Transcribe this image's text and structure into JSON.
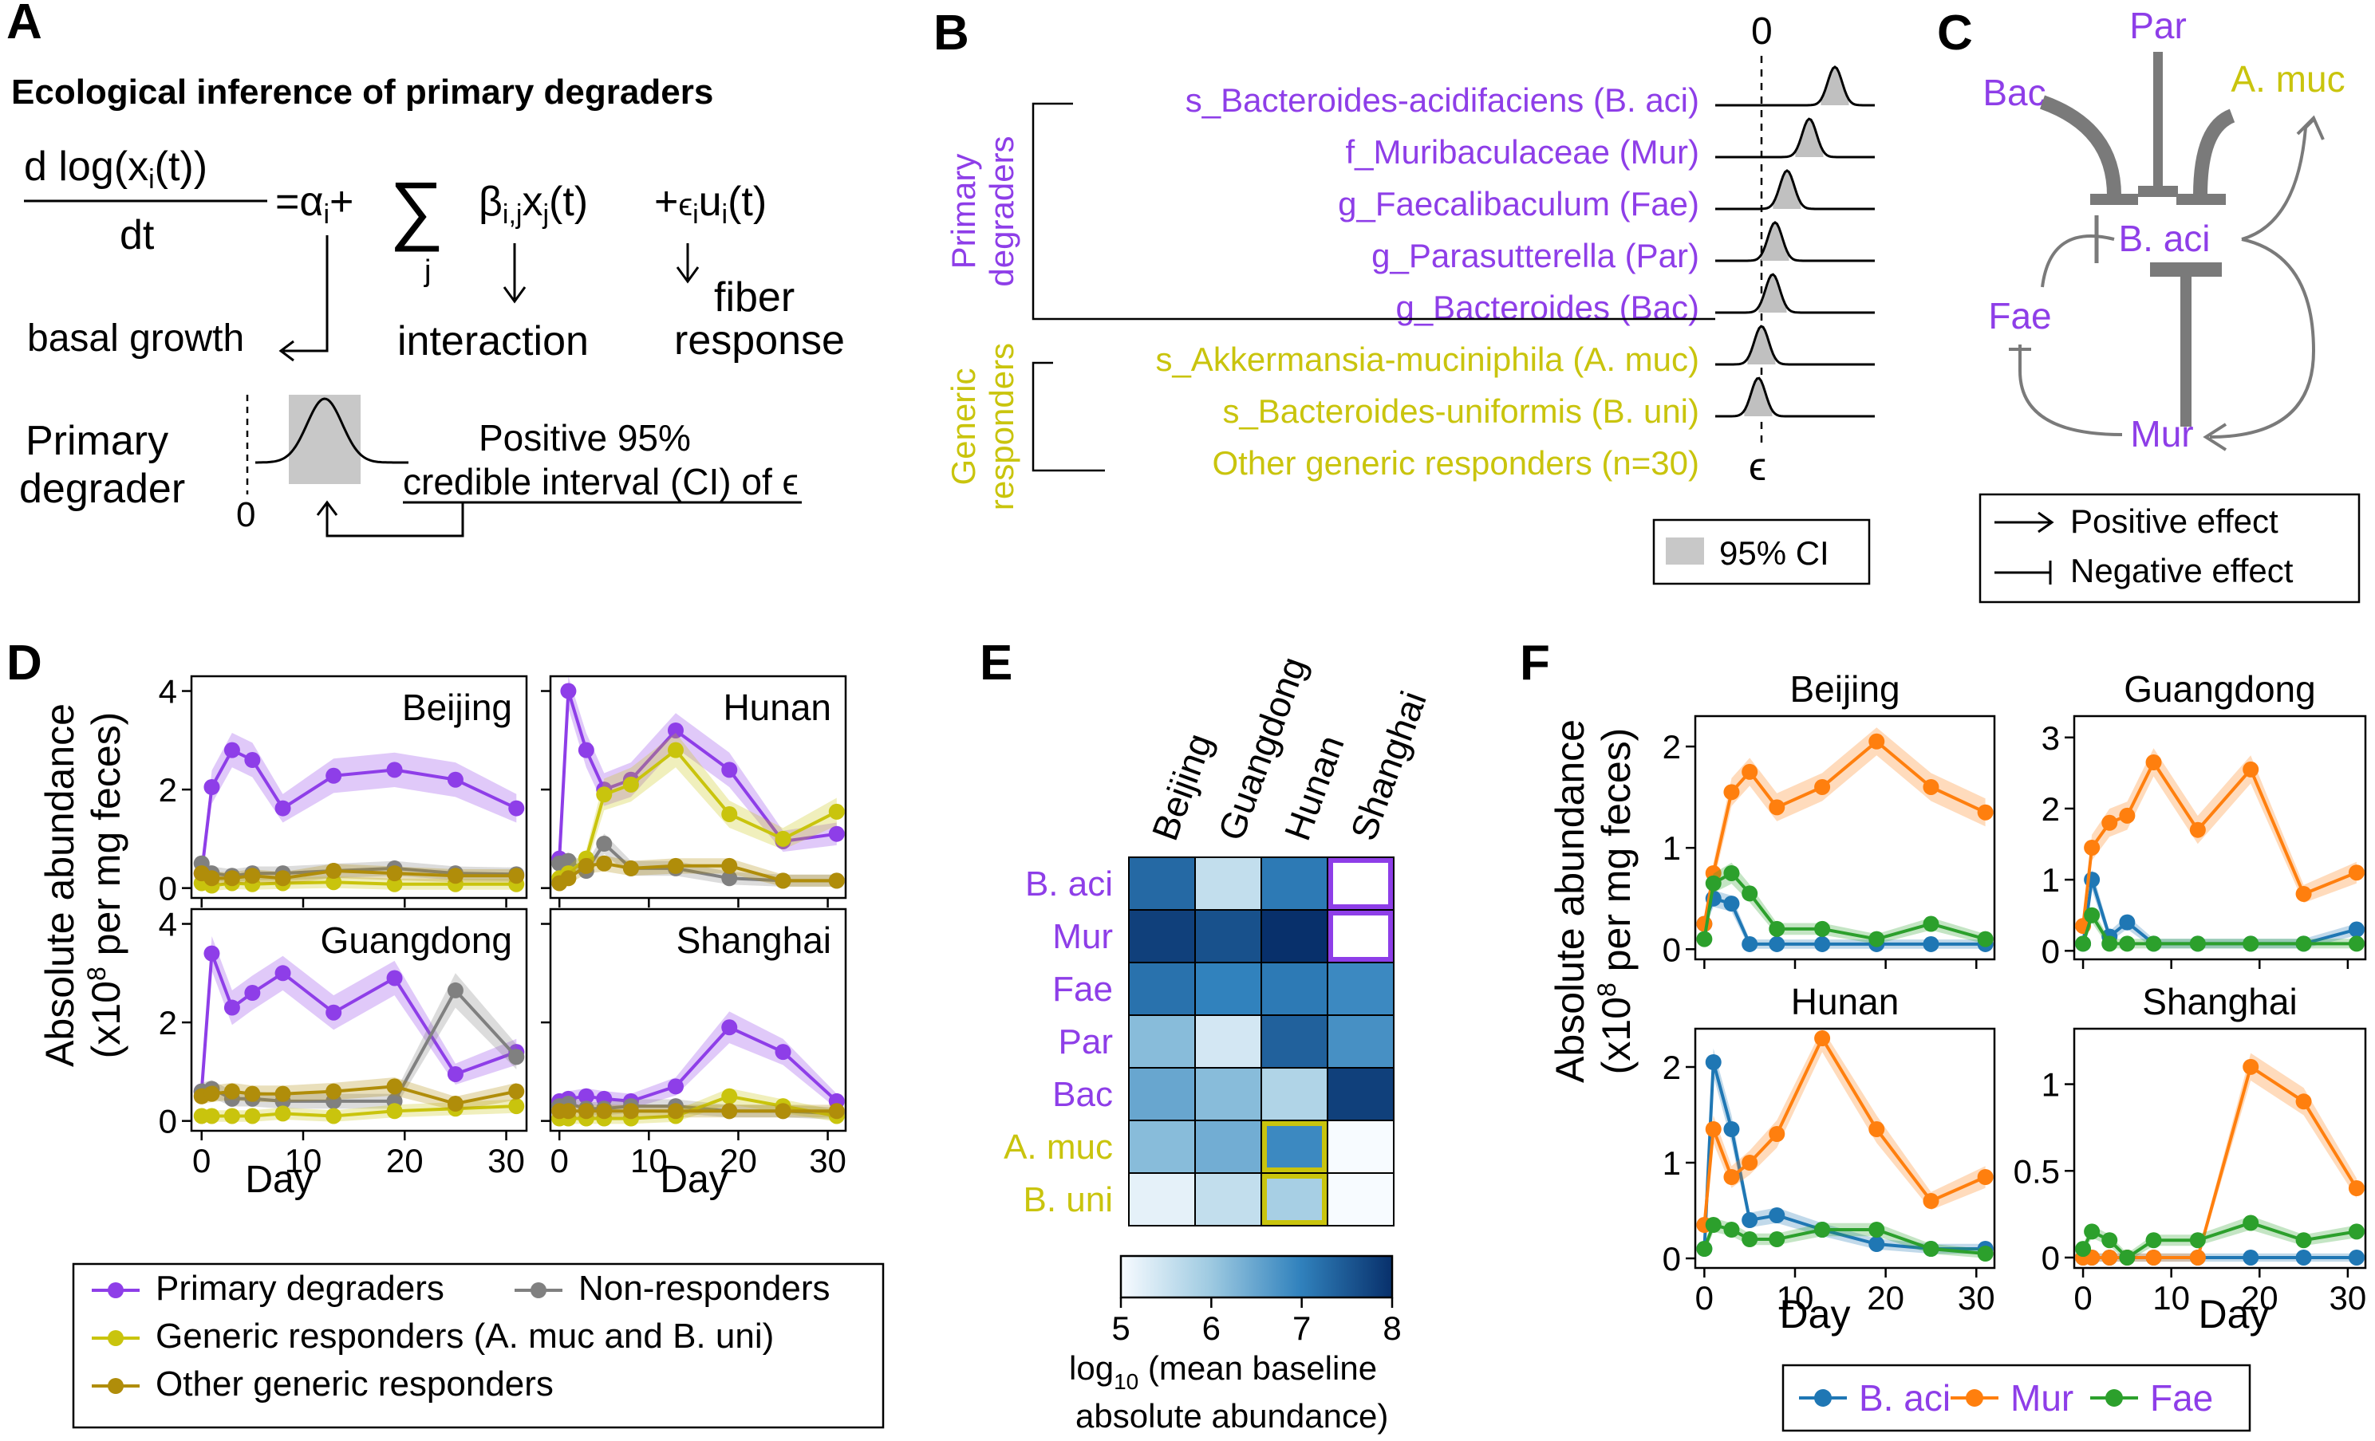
{
  "colors": {
    "purple": "#8e3ee8",
    "yellow": "#c9c40d",
    "olive": "#b08d0a",
    "gray": "#808080",
    "blue": "#1f77b4",
    "orange": "#ff7f0e",
    "green": "#2ca02c",
    "pink": "#f4a0a0"
  },
  "panelA": {
    "letter": "A",
    "title": "Ecological inference of primary degraders",
    "eq_num": "d log(x",
    "eq_num_sub": "i",
    "eq_num_end": "(t))",
    "eq_den": "dt",
    "eq_rhs1": "=α",
    "eq_sub_i": "i",
    "eq_plus": "+",
    "eq_sum": "∑",
    "eq_sum_sub": "j",
    "eq_beta": "β",
    "eq_beta_sub": "i,j",
    "eq_x": "x",
    "eq_x_sub": "j",
    "eq_x_end": "(t)",
    "eq_plus2": "+",
    "eq_eps": "ϵ",
    "eq_eps_sub": "i",
    "eq_u": "u",
    "eq_u_sub": "i",
    "eq_u_end": "(t)",
    "basal": "basal growth",
    "interaction": "interaction",
    "fiber1": "fiber",
    "fiber2": "response",
    "pd1": "Primary",
    "pd2": "degrader",
    "zero": "0",
    "ci1": "Positive 95%",
    "ci2": "credible interval (CI) of ϵ"
  },
  "panelB": {
    "letter": "B",
    "zero": "0",
    "epsilon": "ϵ",
    "group_primary": [
      "Primary",
      "degraders"
    ],
    "group_generic": [
      "Generic",
      "responders"
    ],
    "taxa": [
      {
        "label": "s_Bacteroides-acidifaciens (B. aci)",
        "group": "primary"
      },
      {
        "label": "f_Muribaculaceae (Mur)",
        "group": "primary"
      },
      {
        "label": "g_Faecalibaculum (Fae)",
        "group": "primary"
      },
      {
        "label": "g_Parasutterella (Par)",
        "group": "primary"
      },
      {
        "label": "g_Bacteroides (Bac)",
        "group": "primary"
      },
      {
        "label": "s_Akkermansia-muciniphila (A. muc)",
        "group": "generic"
      },
      {
        "label": "s_Bacteroides-uniformis (B. uni)",
        "group": "generic"
      },
      {
        "label": "Other generic responders (n=30)",
        "group": "generic"
      }
    ],
    "legend": "95% CI"
  },
  "panelC": {
    "letter": "C",
    "nodes": {
      "par": "Par",
      "bac": "Bac",
      "amuc": "A. muc",
      "baci": "B. aci",
      "fae": "Fae",
      "mur": "Mur"
    },
    "legend_pos": "Positive effect",
    "legend_neg": "Negative effect"
  },
  "panelD": {
    "letter": "D",
    "ylabel1": "Absolute abundance",
    "ylabel2": "(x10",
    "ylabel_sup": "8",
    "ylabel3": " per mg feces)",
    "xlabel": "Day",
    "xticks": [
      "0",
      "10",
      "20",
      "30"
    ],
    "yticks": [
      "0",
      "2",
      "4"
    ],
    "legend": {
      "primary": "Primary degraders",
      "non": "Non-responders",
      "generic": "Generic responders (A. muc and B. uni)",
      "other": "Other generic responders"
    }
  },
  "panelE": {
    "letter": "E",
    "columns": [
      "Beijing",
      "Guangdong",
      "Hunan",
      "Shanghai"
    ],
    "rows": [
      {
        "label": "B. aci",
        "group": "primary"
      },
      {
        "label": "Mur",
        "group": "primary"
      },
      {
        "label": "Fae",
        "group": "primary"
      },
      {
        "label": "Par",
        "group": "primary"
      },
      {
        "label": "Bac",
        "group": "primary"
      },
      {
        "label": "A. muc",
        "group": "generic"
      },
      {
        "label": "B. uni",
        "group": "generic"
      }
    ],
    "cbar_ticks": [
      "5",
      "6",
      "7",
      "8"
    ],
    "cbar_label1": "log",
    "cbar_label_sub": "10",
    "cbar_label2": " (mean baseline",
    "cbar_label3": "absolute abundance)"
  },
  "panelF": {
    "letter": "F",
    "ylabel1": "Absolute abundance",
    "ylabel2": "(x10",
    "ylabel_sup": "8",
    "ylabel3": " per mg feces)",
    "xlabel": "Day",
    "xticks": [
      "0",
      "10",
      "20",
      "30"
    ],
    "legend": [
      "B. aci",
      "Mur",
      "Fae"
    ]
  },
  "chart_data": [
    {
      "type": "line",
      "title": "Beijing",
      "xlabel": "Day",
      "ylabel": "Absolute abundance (x10^8 per mg feces)",
      "ylim": [
        0,
        4.2
      ],
      "series": [
        {
          "name": "Primary degraders",
          "x": [
            0,
            1,
            3,
            5,
            8,
            13,
            19,
            25,
            31
          ],
          "values": [
            0.3,
            2.05,
            2.8,
            2.6,
            1.62,
            2.28,
            2.4,
            2.2,
            1.62
          ]
        },
        {
          "name": "Non-responders",
          "x": [
            0,
            1,
            3,
            5,
            8,
            13,
            19,
            25,
            31
          ],
          "values": [
            0.5,
            0.3,
            0.25,
            0.3,
            0.3,
            0.35,
            0.4,
            0.3,
            0.28
          ]
        },
        {
          "name": "Generic responders (A. muc and B. uni)",
          "x": [
            0,
            1,
            3,
            5,
            8,
            13,
            19,
            25,
            31
          ],
          "values": [
            0.1,
            0.05,
            0.1,
            0.08,
            0.1,
            0.12,
            0.08,
            0.08,
            0.08
          ]
        },
        {
          "name": "Other generic responders",
          "x": [
            0,
            1,
            3,
            5,
            8,
            13,
            19,
            25,
            31
          ],
          "values": [
            0.3,
            0.2,
            0.2,
            0.25,
            0.2,
            0.35,
            0.3,
            0.25,
            0.25
          ]
        }
      ]
    },
    {
      "type": "line",
      "title": "Hunan",
      "ylim": [
        0,
        4.2
      ],
      "series": [
        {
          "name": "Primary degraders",
          "x": [
            0,
            1,
            3,
            5,
            8,
            13,
            19,
            25,
            31
          ],
          "values": [
            0.6,
            4.0,
            2.8,
            2.0,
            2.2,
            3.2,
            2.4,
            0.95,
            1.1
          ]
        },
        {
          "name": "Non-responders",
          "x": [
            0,
            1,
            3,
            5,
            8,
            13,
            19,
            25,
            31
          ],
          "values": [
            0.5,
            0.55,
            0.35,
            0.9,
            0.4,
            0.4,
            0.2,
            0.15,
            0.15
          ]
        },
        {
          "name": "Generic responders (A. muc and B. uni)",
          "x": [
            0,
            1,
            3,
            5,
            8,
            13,
            19,
            25,
            31
          ],
          "values": [
            0.2,
            0.3,
            0.6,
            1.9,
            2.1,
            2.8,
            1.5,
            1.0,
            1.55
          ]
        },
        {
          "name": "Other generic responders",
          "x": [
            0,
            1,
            3,
            5,
            8,
            13,
            19,
            25,
            31
          ],
          "values": [
            0.1,
            0.2,
            0.45,
            0.5,
            0.4,
            0.45,
            0.45,
            0.15,
            0.15
          ]
        }
      ]
    },
    {
      "type": "line",
      "title": "Guangdong",
      "ylim": [
        0,
        4.2
      ],
      "series": [
        {
          "name": "Primary degraders",
          "x": [
            0,
            1,
            3,
            5,
            8,
            13,
            19,
            25,
            31
          ],
          "values": [
            0.6,
            3.4,
            2.3,
            2.6,
            3.0,
            2.2,
            2.9,
            0.95,
            1.4
          ]
        },
        {
          "name": "Non-responders",
          "x": [
            0,
            1,
            3,
            5,
            8,
            13,
            19,
            25,
            31
          ],
          "values": [
            0.6,
            0.65,
            0.45,
            0.45,
            0.4,
            0.4,
            0.4,
            2.65,
            1.3
          ]
        },
        {
          "name": "Generic responders (A. muc and B. uni)",
          "x": [
            0,
            1,
            3,
            5,
            8,
            13,
            19,
            25,
            31
          ],
          "values": [
            0.1,
            0.1,
            0.1,
            0.1,
            0.15,
            0.1,
            0.2,
            0.25,
            0.3
          ]
        },
        {
          "name": "Other generic responders",
          "x": [
            0,
            1,
            3,
            5,
            8,
            13,
            19,
            25,
            31
          ],
          "values": [
            0.5,
            0.55,
            0.6,
            0.55,
            0.55,
            0.6,
            0.7,
            0.35,
            0.6
          ]
        }
      ]
    },
    {
      "type": "line",
      "title": "Shanghai",
      "ylim": [
        0,
        4.2
      ],
      "series": [
        {
          "name": "Primary degraders",
          "x": [
            0,
            1,
            3,
            5,
            8,
            13,
            19,
            25,
            31
          ],
          "values": [
            0.4,
            0.45,
            0.5,
            0.45,
            0.4,
            0.7,
            1.9,
            1.4,
            0.4
          ]
        },
        {
          "name": "Non-responders",
          "x": [
            0,
            1,
            3,
            5,
            8,
            13,
            19,
            25,
            31
          ],
          "values": [
            0.3,
            0.35,
            0.25,
            0.25,
            0.3,
            0.3,
            0.2,
            0.2,
            0.15
          ]
        },
        {
          "name": "Generic responders (A. muc and B. uni)",
          "x": [
            0,
            1,
            3,
            5,
            8,
            13,
            19,
            25,
            31
          ],
          "values": [
            0.05,
            0.05,
            0.05,
            0.05,
            0.05,
            0.1,
            0.5,
            0.3,
            0.1
          ]
        },
        {
          "name": "Other generic responders",
          "x": [
            0,
            1,
            3,
            5,
            8,
            13,
            19,
            25,
            31
          ],
          "values": [
            0.2,
            0.2,
            0.2,
            0.2,
            0.2,
            0.2,
            0.2,
            0.2,
            0.2
          ]
        }
      ]
    },
    {
      "type": "heatmap",
      "columns": [
        "Beijing",
        "Guangdong",
        "Hunan",
        "Shanghai"
      ],
      "rows": [
        "B. aci",
        "Mur",
        "Fae",
        "Par",
        "Bac",
        "A. muc",
        "B. uni"
      ],
      "values": [
        [
          7.3,
          5.6,
          7.1,
          null
        ],
        [
          7.8,
          7.6,
          8.0,
          null
        ],
        [
          7.2,
          7.0,
          7.1,
          6.9
        ],
        [
          6.2,
          5.4,
          7.4,
          6.8
        ],
        [
          6.5,
          6.2,
          5.8,
          7.8
        ],
        [
          6.2,
          6.4,
          6.9,
          5.0
        ],
        [
          5.2,
          5.6,
          5.9,
          5.0
        ]
      ],
      "colorbar": {
        "min": 5,
        "max": 8,
        "label": "log10 (mean baseline absolute abundance)"
      }
    },
    {
      "type": "line",
      "title": "Beijing",
      "xlabel": "Day",
      "ylim": [
        0,
        2.3
      ],
      "series": [
        {
          "name": "B. aci",
          "x": [
            0,
            1,
            3,
            5,
            8,
            13,
            19,
            25,
            31
          ],
          "values": [
            0.25,
            0.5,
            0.45,
            0.05,
            0.05,
            0.05,
            0.05,
            0.05,
            0.05
          ]
        },
        {
          "name": "Mur",
          "x": [
            0,
            1,
            3,
            5,
            8,
            13,
            19,
            25,
            31
          ],
          "values": [
            0.25,
            0.75,
            1.55,
            1.75,
            1.4,
            1.6,
            2.05,
            1.6,
            1.35
          ]
        },
        {
          "name": "Fae",
          "x": [
            0,
            1,
            3,
            5,
            8,
            13,
            19,
            25,
            31
          ],
          "values": [
            0.1,
            0.65,
            0.75,
            0.55,
            0.2,
            0.2,
            0.1,
            0.25,
            0.1
          ]
        }
      ]
    },
    {
      "type": "line",
      "title": "Guangdong",
      "ylim": [
        0,
        3.2
      ],
      "series": [
        {
          "name": "B. aci",
          "x": [
            0,
            1,
            3,
            5,
            8,
            13,
            19,
            25,
            31
          ],
          "values": [
            0.1,
            1.0,
            0.2,
            0.4,
            0.1,
            0.1,
            0.1,
            0.1,
            0.3
          ]
        },
        {
          "name": "Mur",
          "x": [
            0,
            1,
            3,
            5,
            8,
            13,
            19,
            25,
            31
          ],
          "values": [
            0.35,
            1.45,
            1.8,
            1.9,
            2.65,
            1.7,
            2.55,
            0.8,
            1.1
          ]
        },
        {
          "name": "Fae",
          "x": [
            0,
            1,
            3,
            5,
            8,
            13,
            19,
            25,
            31
          ],
          "values": [
            0.1,
            0.5,
            0.1,
            0.1,
            0.1,
            0.1,
            0.1,
            0.1,
            0.1
          ]
        }
      ]
    },
    {
      "type": "line",
      "title": "Hunan",
      "ylim": [
        0,
        2.3
      ],
      "series": [
        {
          "name": "B. aci",
          "x": [
            0,
            1,
            3,
            5,
            8,
            13,
            19,
            25,
            31
          ],
          "values": [
            0.1,
            2.05,
            1.35,
            0.4,
            0.45,
            0.3,
            0.15,
            0.1,
            0.1
          ]
        },
        {
          "name": "Mur",
          "x": [
            0,
            1,
            3,
            5,
            8,
            13,
            19,
            25,
            31
          ],
          "values": [
            0.35,
            1.35,
            0.85,
            1.0,
            1.3,
            2.3,
            1.35,
            0.6,
            0.85
          ]
        },
        {
          "name": "Fae",
          "x": [
            0,
            1,
            3,
            5,
            8,
            13,
            19,
            25,
            31
          ],
          "values": [
            0.1,
            0.35,
            0.3,
            0.2,
            0.2,
            0.3,
            0.3,
            0.1,
            0.05
          ]
        }
      ]
    },
    {
      "type": "line",
      "title": "Shanghai",
      "ylim": [
        0,
        1.3
      ],
      "series": [
        {
          "name": "B. aci",
          "x": [
            0,
            1,
            3,
            5,
            8,
            13,
            19,
            25,
            31
          ],
          "values": [
            0,
            0,
            0,
            0,
            0,
            0,
            0,
            0,
            0
          ]
        },
        {
          "name": "Mur",
          "x": [
            0,
            1,
            3,
            5,
            8,
            13,
            19,
            25,
            31
          ],
          "values": [
            0,
            0,
            0,
            0,
            0,
            0,
            1.1,
            0.9,
            0.4
          ]
        },
        {
          "name": "Fae",
          "x": [
            0,
            1,
            3,
            5,
            8,
            13,
            19,
            25,
            31
          ],
          "values": [
            0.05,
            0.15,
            0.1,
            0.0,
            0.1,
            0.1,
            0.2,
            0.1,
            0.15
          ]
        }
      ]
    }
  ]
}
